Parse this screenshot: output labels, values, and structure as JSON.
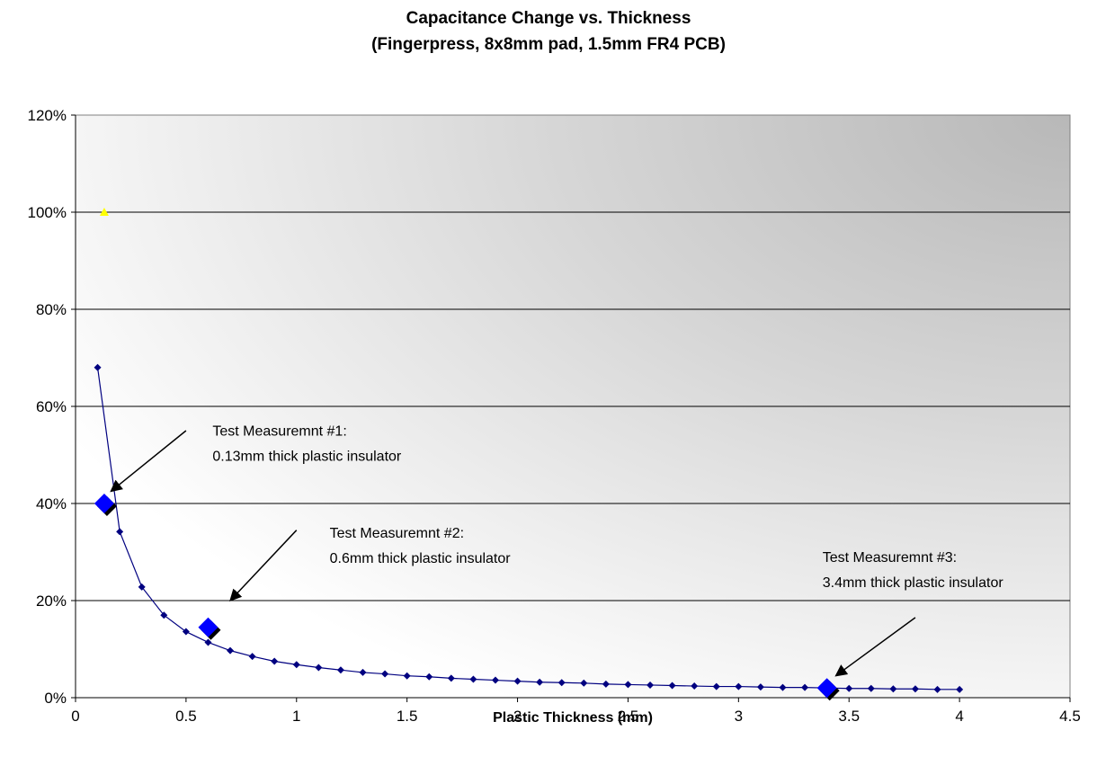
{
  "chart_data": {
    "type": "scatter",
    "title": "Capacitance Change vs. Thickness",
    "subtitle": "(Fingerpress, 8x8mm pad, 1.5mm FR4 PCB)",
    "xlabel": "Plastic Thickness (mm)",
    "ylabel": "",
    "xlim": [
      0,
      4.5
    ],
    "ylim": [
      0,
      1.2
    ],
    "x_ticks": [
      0,
      0.5,
      1,
      1.5,
      2,
      2.5,
      3,
      3.5,
      4,
      4.5
    ],
    "x_tick_labels": [
      "0",
      "0.5",
      "1",
      "1.5",
      "2",
      "2.5",
      "3",
      "3.5",
      "4",
      "4.5"
    ],
    "y_ticks": [
      0,
      0.2,
      0.4,
      0.6,
      0.8,
      1.0,
      1.2
    ],
    "y_tick_labels": [
      "0%",
      "20%",
      "40%",
      "60%",
      "80%",
      "100%",
      "120%"
    ],
    "grid": "horizontal",
    "legend": "none",
    "background": "gradient white to gray",
    "series": [
      {
        "style": "line-with-small-diamonds",
        "color": "#000080",
        "x": [
          0.1,
          0.2,
          0.3,
          0.4,
          0.5,
          0.6,
          0.7,
          0.8,
          0.9,
          1.0,
          1.1,
          1.2,
          1.3,
          1.4,
          1.5,
          1.6,
          1.7,
          1.8,
          1.9,
          2.0,
          2.1,
          2.2,
          2.3,
          2.4,
          2.5,
          2.6,
          2.7,
          2.8,
          2.9,
          3.0,
          3.1,
          3.2,
          3.3,
          3.4,
          3.5,
          3.6,
          3.7,
          3.8,
          3.9,
          4.0
        ],
        "y": [
          0.68,
          0.342,
          0.228,
          0.17,
          0.136,
          0.114,
          0.097,
          0.085,
          0.075,
          0.068,
          0.062,
          0.057,
          0.052,
          0.049,
          0.045,
          0.043,
          0.04,
          0.038,
          0.036,
          0.034,
          0.032,
          0.031,
          0.03,
          0.028,
          0.027,
          0.026,
          0.025,
          0.024,
          0.023,
          0.023,
          0.022,
          0.021,
          0.021,
          0.02,
          0.019,
          0.019,
          0.018,
          0.018,
          0.017,
          0.017
        ]
      },
      {
        "style": "large-diamond-markers",
        "color": "#0000ff",
        "x": [
          0.13,
          0.6,
          3.4
        ],
        "y": [
          0.4,
          0.145,
          0.02
        ]
      },
      {
        "style": "triangle-marker",
        "color": "#ffff00",
        "x": [
          0.13
        ],
        "y": [
          1.0
        ]
      }
    ],
    "annotations": [
      {
        "line1": "Test Measuremnt #1:",
        "line2": "0.13mm thick plastic insulator",
        "text_at": [
          0.62,
          0.54
        ],
        "arrow_from": [
          0.5,
          0.55
        ],
        "arrow_to": [
          0.16,
          0.425
        ]
      },
      {
        "line1": "Test Measuremnt #2:",
        "line2": "0.6mm thick plastic insulator",
        "text_at": [
          1.15,
          0.33
        ],
        "arrow_from": [
          1.0,
          0.345
        ],
        "arrow_to": [
          0.7,
          0.2
        ]
      },
      {
        "line1": "Test Measuremnt #3:",
        "line2": "3.4mm thick plastic insulator",
        "text_at": [
          3.38,
          0.28
        ],
        "arrow_from": [
          3.8,
          0.165
        ],
        "arrow_to": [
          3.44,
          0.045
        ]
      }
    ]
  }
}
